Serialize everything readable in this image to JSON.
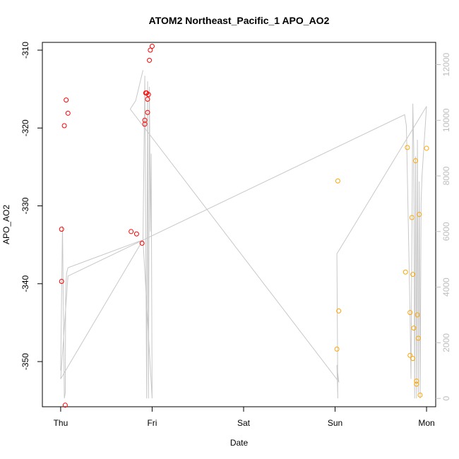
{
  "chart_data": {
    "type": "scatter",
    "title": "ATOM2 Northeast_Pacific_1 APO_AO2",
    "xlabel": "Date",
    "ylabel": "APO_AO2",
    "x_unit": "days (Thu = 0)",
    "xlim": [
      -0.2,
      4.1
    ],
    "ylim": [
      -355.8,
      -309.0
    ],
    "y_ticks": [
      -310,
      -320,
      -330,
      -340,
      -350
    ],
    "x_ticks": [
      {
        "x": 0,
        "label": "Thu"
      },
      {
        "x": 1,
        "label": "Fri"
      },
      {
        "x": 2,
        "label": "Sat"
      },
      {
        "x": 3,
        "label": "Sun"
      },
      {
        "x": 4,
        "label": "Mon"
      }
    ],
    "y2lim": [
      -300,
      12800
    ],
    "y2_ticks": [
      0,
      2000,
      4000,
      6000,
      8000,
      10000,
      12000
    ],
    "colors": {
      "red": "#ff0000",
      "orange": "#ffa500",
      "altitude": "#bebebe"
    },
    "series": [
      {
        "color": "red",
        "points": [
          {
            "x": 0.01,
            "y": -333.0
          },
          {
            "x": 0.01,
            "y": -339.7
          },
          {
            "x": 0.04,
            "y": -319.7
          },
          {
            "x": 0.06,
            "y": -316.4
          },
          {
            "x": 0.08,
            "y": -318.1
          },
          {
            "x": 0.05,
            "y": -355.6
          },
          {
            "x": 0.77,
            "y": -333.3
          },
          {
            "x": 0.83,
            "y": -333.6
          },
          {
            "x": 0.89,
            "y": -334.8
          },
          {
            "x": 0.92,
            "y": -319.5
          },
          {
            "x": 0.92,
            "y": -319.0
          },
          {
            "x": 0.93,
            "y": -315.5
          },
          {
            "x": 0.94,
            "y": -315.5
          },
          {
            "x": 0.95,
            "y": -318.0
          },
          {
            "x": 0.95,
            "y": -316.3
          },
          {
            "x": 0.96,
            "y": -315.7
          },
          {
            "x": 0.97,
            "y": -311.3
          },
          {
            "x": 0.98,
            "y": -310.0
          },
          {
            "x": 1.0,
            "y": -309.5
          }
        ]
      },
      {
        "color": "orange",
        "points": [
          {
            "x": 3.03,
            "y": -326.8
          },
          {
            "x": 3.02,
            "y": -348.4
          },
          {
            "x": 3.04,
            "y": -343.5
          },
          {
            "x": 3.77,
            "y": -338.5
          },
          {
            "x": 3.79,
            "y": -322.5
          },
          {
            "x": 3.82,
            "y": -343.7
          },
          {
            "x": 3.82,
            "y": -349.2
          },
          {
            "x": 3.84,
            "y": -331.5
          },
          {
            "x": 3.85,
            "y": -338.8
          },
          {
            "x": 3.85,
            "y": -349.6
          },
          {
            "x": 3.86,
            "y": -345.7
          },
          {
            "x": 3.88,
            "y": -324.2
          },
          {
            "x": 3.89,
            "y": -352.9
          },
          {
            "x": 3.89,
            "y": -352.5
          },
          {
            "x": 3.9,
            "y": -344.0
          },
          {
            "x": 3.91,
            "y": -347.0
          },
          {
            "x": 3.92,
            "y": -331.1
          },
          {
            "x": 3.93,
            "y": -354.3
          },
          {
            "x": 4.0,
            "y": -322.6
          }
        ]
      }
    ],
    "altitude_line": {
      "axis": "right",
      "x": [
        0.0,
        0.02,
        0.04,
        0.05,
        0.055,
        0.065,
        0.08,
        0.9,
        0.92,
        0.94,
        0.95,
        0.96,
        0.97,
        0.98,
        0.99,
        1.0,
        0.9,
        0.0,
        0.08,
        3.76,
        3.78,
        3.82,
        3.83,
        3.85,
        3.86,
        3.87,
        3.88,
        3.89,
        3.9,
        3.91,
        3.92,
        3.93,
        3.94,
        3.95,
        4.0,
        3.02,
        3.03,
        3.02,
        3.04,
        0.76,
        0.82,
        0.9
      ],
      "y": [
        1000,
        6200,
        0,
        200,
        3800,
        4500,
        4700,
        5700,
        11600,
        0,
        11400,
        0,
        11200,
        6000,
        8800,
        0,
        5700,
        700,
        4400,
        10200,
        9800,
        3000,
        700,
        10600,
        9000,
        0,
        8700,
        0,
        9300,
        200,
        7800,
        0,
        7000,
        8000,
        10500,
        5200,
        0,
        1200,
        600,
        10400,
        10700,
        11800
      ]
    }
  }
}
